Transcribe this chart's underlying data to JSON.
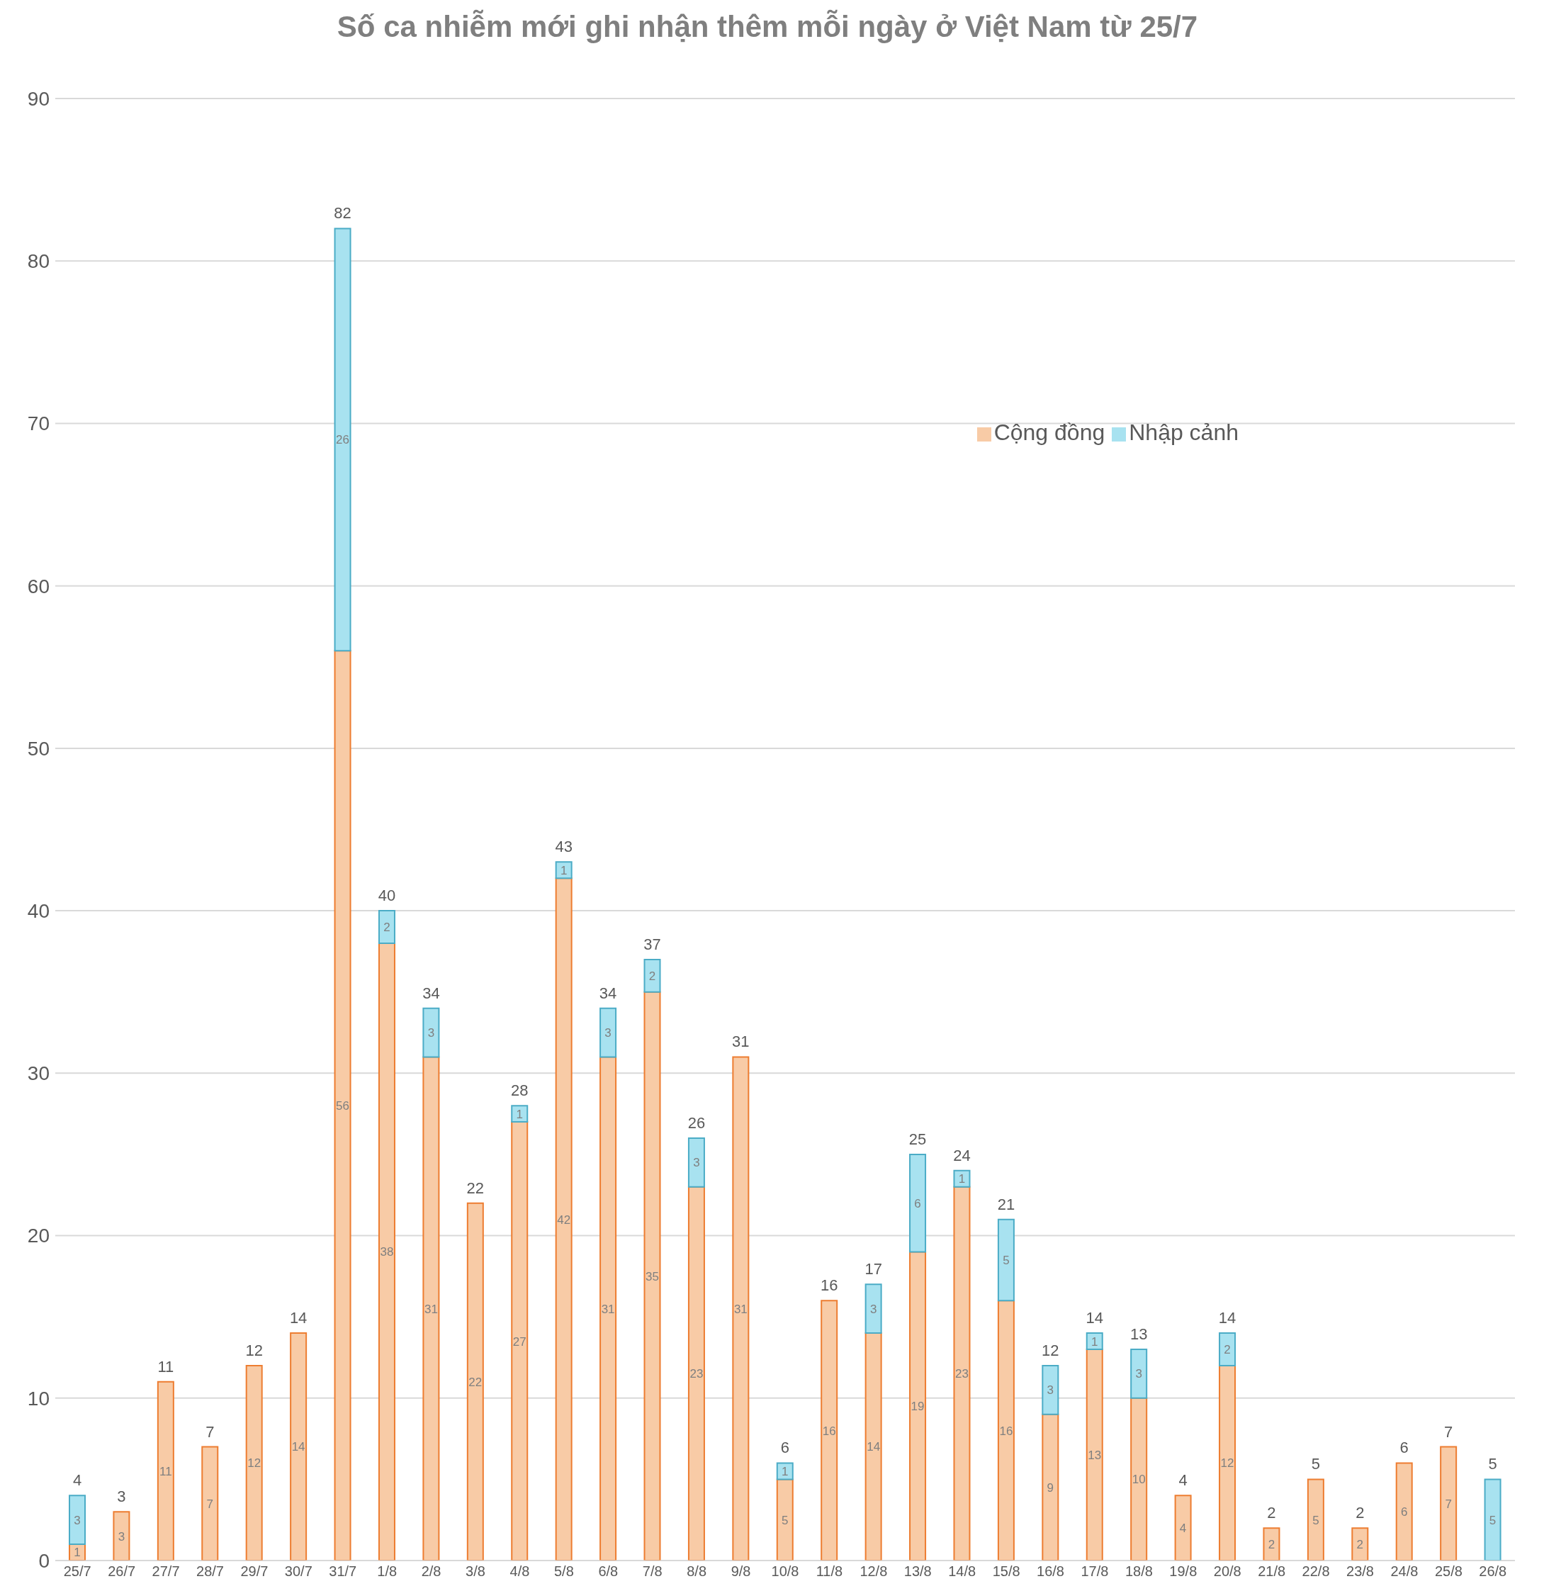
{
  "chart_data": {
    "type": "bar",
    "title": "Số ca nhiễm mới ghi nhận thêm mỗi ngày ở Việt Nam từ 25/7",
    "stacked": true,
    "data_labels": true,
    "categories": [
      "25/7",
      "26/7",
      "27/7",
      "28/7",
      "29/7",
      "30/7",
      "31/7",
      "1/8",
      "2/8",
      "3/8",
      "4/8",
      "5/8",
      "6/8",
      "7/8",
      "8/8",
      "9/8",
      "10/8",
      "11/8",
      "12/8",
      "13/8",
      "14/8",
      "15/8",
      "16/8",
      "17/8",
      "18/8",
      "19/8",
      "20/8",
      "21/8",
      "22/8",
      "23/8",
      "24/8",
      "25/8",
      "26/8"
    ],
    "series": [
      {
        "name": "Cộng đồng",
        "color": "#f8cba6",
        "values": [
          1,
          3,
          11,
          7,
          12,
          14,
          56,
          38,
          31,
          22,
          27,
          42,
          31,
          35,
          23,
          31,
          5,
          16,
          14,
          19,
          23,
          16,
          9,
          13,
          10,
          4,
          12,
          2,
          5,
          2,
          6,
          7,
          null
        ]
      },
      {
        "name": "Nhập cảnh",
        "color": "#a8e2f0",
        "values": [
          3,
          null,
          null,
          null,
          null,
          null,
          26,
          2,
          3,
          null,
          1,
          1,
          3,
          2,
          3,
          null,
          1,
          null,
          3,
          6,
          1,
          5,
          3,
          1,
          3,
          null,
          2,
          null,
          null,
          null,
          null,
          null,
          5
        ]
      }
    ],
    "totals": [
      "4",
      "3",
      "11",
      "7",
      "12",
      "14",
      "82",
      "40",
      "34",
      "22",
      "28",
      "43",
      "34",
      "37",
      "26",
      "31",
      "6",
      "16",
      "17",
      "25",
      "24",
      "21",
      "12",
      "14",
      "13",
      "4",
      "14",
      "2",
      "5",
      "2",
      "6",
      "7",
      "5"
    ],
    "ylim": [
      0,
      90
    ],
    "yticks": [
      0,
      10,
      20,
      30,
      40,
      50,
      60,
      70,
      80,
      90
    ],
    "grid": "y",
    "legend": "top right"
  }
}
